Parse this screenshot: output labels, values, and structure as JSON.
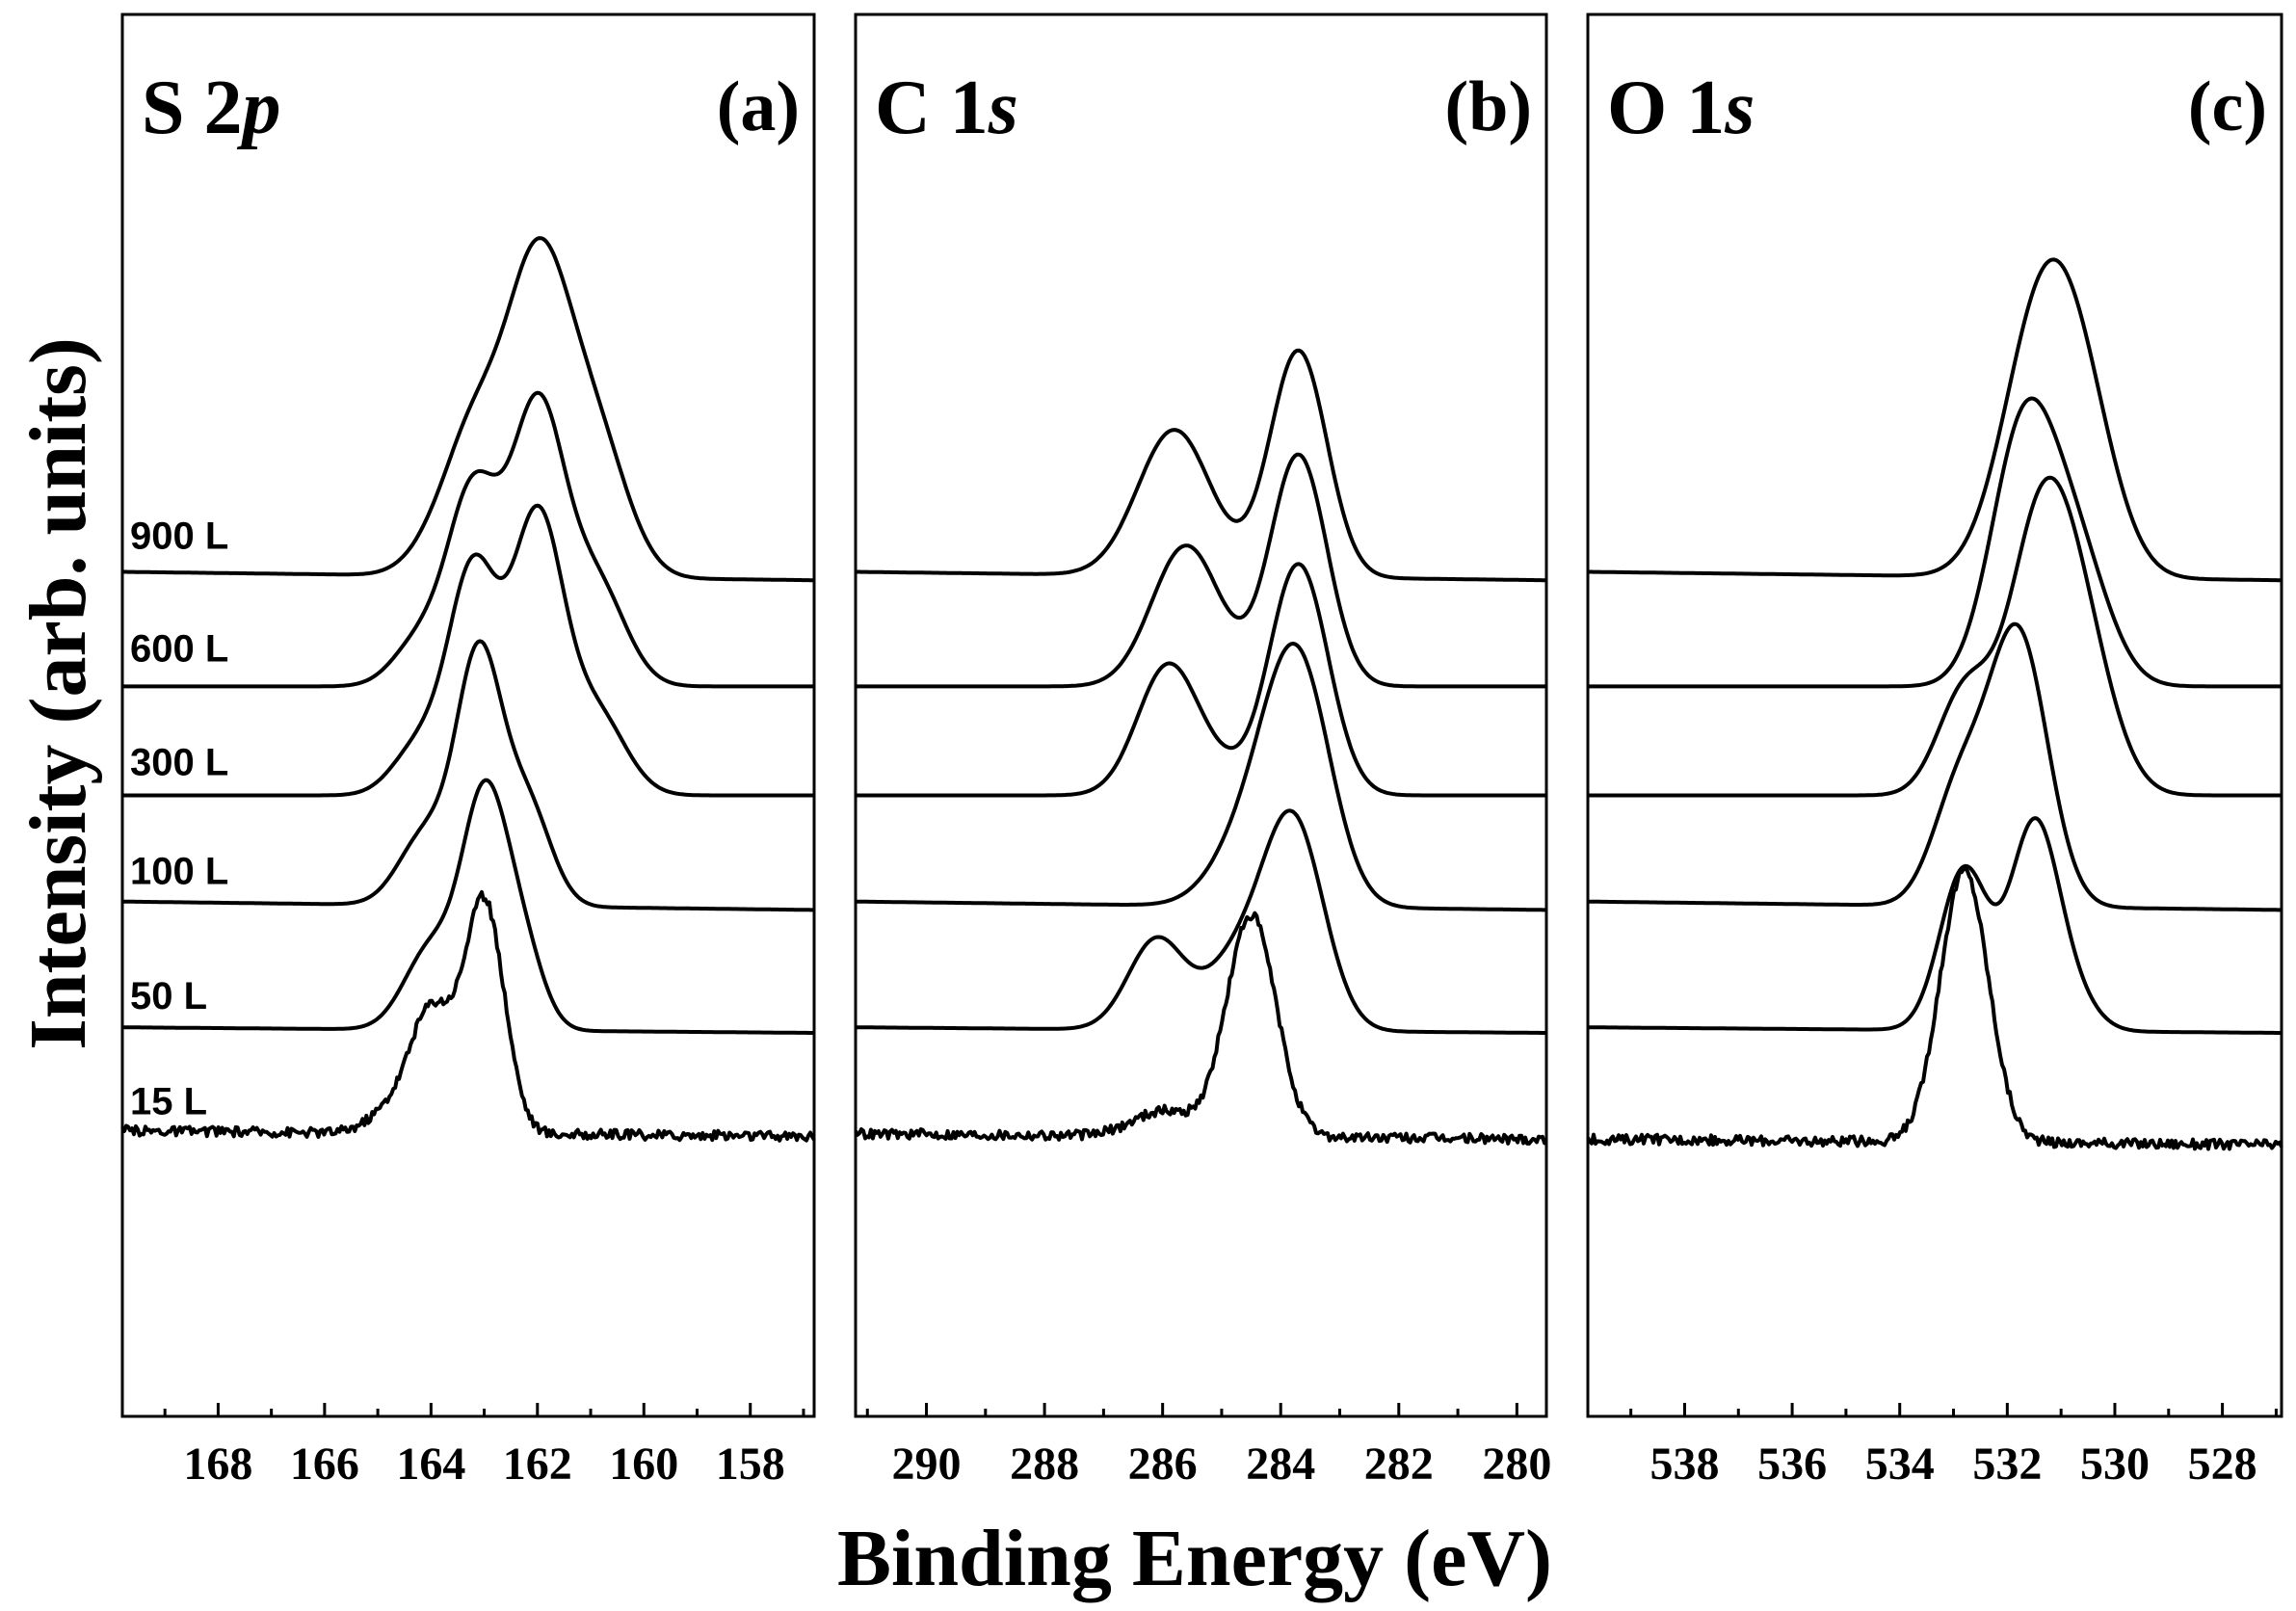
{
  "chart_data": {
    "type": "line",
    "xlabel": "Binding Energy (eV)",
    "ylabel": "Intensity (arb. units)",
    "exposures": [
      "900 L",
      "600 L",
      "300 L",
      "100 L",
      "50 L",
      "15 L"
    ],
    "panels": [
      {
        "letter": "(a)",
        "title_main": "S 2",
        "title_italic": "p",
        "xlim": [
          169.8,
          156.8
        ],
        "ticks": [
          168,
          166,
          164,
          162,
          160,
          158
        ],
        "series": [
          {
            "name": "900 L",
            "baseline_left": 0.85,
            "baseline_right": 0.82,
            "peaks": [
              {
                "x": 162.0,
                "h": 3.0,
                "w": 0.6
              },
              {
                "x": 163.2,
                "h": 1.3,
                "w": 0.55
              },
              {
                "x": 160.9,
                "h": 1.3,
                "w": 0.6
              },
              {
                "x": 164.0,
                "h": 0.2,
                "w": 0.5
              }
            ]
          },
          {
            "name": "600 L",
            "baseline_left": 0.44,
            "baseline_right": 0.44,
            "peaks": [
              {
                "x": 162.0,
                "h": 2.7,
                "w": 0.5
              },
              {
                "x": 163.2,
                "h": 1.9,
                "w": 0.48
              },
              {
                "x": 160.9,
                "h": 1.0,
                "w": 0.55
              },
              {
                "x": 164.2,
                "h": 0.45,
                "w": 0.5
              }
            ]
          },
          {
            "name": "300 L",
            "baseline_left": 0.05,
            "baseline_right": 0.05,
            "peaks": [
              {
                "x": 162.0,
                "h": 2.7,
                "w": 0.48
              },
              {
                "x": 163.2,
                "h": 2.2,
                "w": 0.46
              },
              {
                "x": 160.9,
                "h": 0.8,
                "w": 0.55
              },
              {
                "x": 164.2,
                "h": 0.5,
                "w": 0.5
              }
            ]
          },
          {
            "name": "100 L",
            "baseline_left": -0.33,
            "baseline_right": -0.36,
            "peaks": [
              {
                "x": 163.1,
                "h": 2.4,
                "w": 0.42
              },
              {
                "x": 162.2,
                "h": 1.0,
                "w": 0.45
              },
              {
                "x": 164.1,
                "h": 0.7,
                "w": 0.5
              }
            ]
          },
          {
            "name": "50 L",
            "baseline_left": -0.78,
            "baseline_right": -0.8,
            "peaks": [
              {
                "x": 163.0,
                "h": 2.2,
                "w": 0.42
              },
              {
                "x": 162.3,
                "h": 0.8,
                "w": 0.4
              },
              {
                "x": 164.0,
                "h": 0.8,
                "w": 0.5
              }
            ]
          },
          {
            "name": "15 L",
            "baseline_left": -1.15,
            "baseline_right": -1.17,
            "noisy": true,
            "peaks": [
              {
                "x": 163.0,
                "h": 2.3,
                "w": 0.38
              },
              {
                "x": 164.0,
                "h": 1.2,
                "w": 0.4
              },
              {
                "x": 164.8,
                "h": 0.2,
                "w": 0.4
              }
            ]
          }
        ]
      },
      {
        "letter": "(b)",
        "title_main": "C 1",
        "title_italic": "s",
        "xlim": [
          291.2,
          279.5
        ],
        "ticks": [
          290,
          288,
          286,
          284,
          282,
          280
        ],
        "series": [
          {
            "name": "900 L",
            "baseline_left": 0.85,
            "baseline_right": 0.82,
            "peaks": [
              {
                "x": 283.7,
                "h": 2.25,
                "w": 0.48
              },
              {
                "x": 285.8,
                "h": 1.45,
                "w": 0.62
              }
            ]
          },
          {
            "name": "600 L",
            "baseline_left": 0.44,
            "baseline_right": 0.44,
            "peaks": [
              {
                "x": 283.7,
                "h": 2.3,
                "w": 0.48
              },
              {
                "x": 285.6,
                "h": 1.4,
                "w": 0.58
              }
            ]
          },
          {
            "name": "300 L",
            "baseline_left": 0.05,
            "baseline_right": 0.05,
            "peaks": [
              {
                "x": 283.7,
                "h": 2.3,
                "w": 0.5
              },
              {
                "x": 285.9,
                "h": 1.3,
                "w": 0.52
              },
              {
                "x": 285.0,
                "h": 0.15,
                "w": 0.4
              }
            ]
          },
          {
            "name": "100 L",
            "baseline_left": -0.33,
            "baseline_right": -0.36,
            "peaks": [
              {
                "x": 283.7,
                "h": 2.3,
                "w": 0.55
              },
              {
                "x": 284.5,
                "h": 0.7,
                "w": 0.6
              }
            ]
          },
          {
            "name": "50 L",
            "baseline_left": -0.78,
            "baseline_right": -0.8,
            "peaks": [
              {
                "x": 283.8,
                "h": 2.1,
                "w": 0.52
              },
              {
                "x": 286.1,
                "h": 0.9,
                "w": 0.48
              },
              {
                "x": 284.8,
                "h": 0.6,
                "w": 0.5
              }
            ]
          },
          {
            "name": "15 L",
            "baseline_left": -1.16,
            "baseline_right": -1.18,
            "noisy": true,
            "peaks": [
              {
                "x": 284.5,
                "h": 2.2,
                "w": 0.42
              },
              {
                "x": 286.0,
                "h": 0.25,
                "w": 0.5
              }
            ]
          }
        ]
      },
      {
        "letter": "(c)",
        "title_main": "O 1",
        "title_italic": "s",
        "xlim": [
          539.8,
          526.9
        ],
        "ticks": [
          538,
          536,
          534,
          532,
          530,
          528
        ],
        "series": [
          {
            "name": "900 L",
            "baseline_left": 0.85,
            "baseline_right": 0.82,
            "peaks": [
              {
                "x": 531.4,
                "h": 2.4,
                "w": 0.7
              },
              {
                "x": 530.6,
                "h": 1.3,
                "w": 0.65
              }
            ]
          },
          {
            "name": "600 L",
            "baseline_left": 0.44,
            "baseline_right": 0.44,
            "peaks": [
              {
                "x": 531.7,
                "h": 2.5,
                "w": 0.6
              },
              {
                "x": 530.7,
                "h": 1.2,
                "w": 0.6
              }
            ]
          },
          {
            "name": "300 L",
            "baseline_left": 0.05,
            "baseline_right": 0.05,
            "peaks": [
              {
                "x": 531.4,
                "h": 2.5,
                "w": 0.6
              },
              {
                "x": 530.6,
                "h": 1.3,
                "w": 0.6
              },
              {
                "x": 532.8,
                "h": 1.0,
                "w": 0.5
              }
            ]
          },
          {
            "name": "100 L",
            "baseline_left": -0.33,
            "baseline_right": -0.36,
            "peaks": [
              {
                "x": 531.8,
                "h": 2.7,
                "w": 0.55
              },
              {
                "x": 532.9,
                "h": 1.1,
                "w": 0.5
              }
            ]
          },
          {
            "name": "50 L",
            "baseline_left": -0.78,
            "baseline_right": -0.8,
            "peaks": [
              {
                "x": 531.5,
                "h": 2.0,
                "w": 0.45
              },
              {
                "x": 532.8,
                "h": 1.6,
                "w": 0.45
              },
              {
                "x": 530.8,
                "h": 0.3,
                "w": 0.45
              }
            ]
          },
          {
            "name": "15 L",
            "baseline_left": -1.18,
            "baseline_right": -1.2,
            "noisy": true,
            "peaks": [
              {
                "x": 532.8,
                "h": 2.7,
                "w": 0.45
              }
            ]
          }
        ]
      }
    ]
  }
}
